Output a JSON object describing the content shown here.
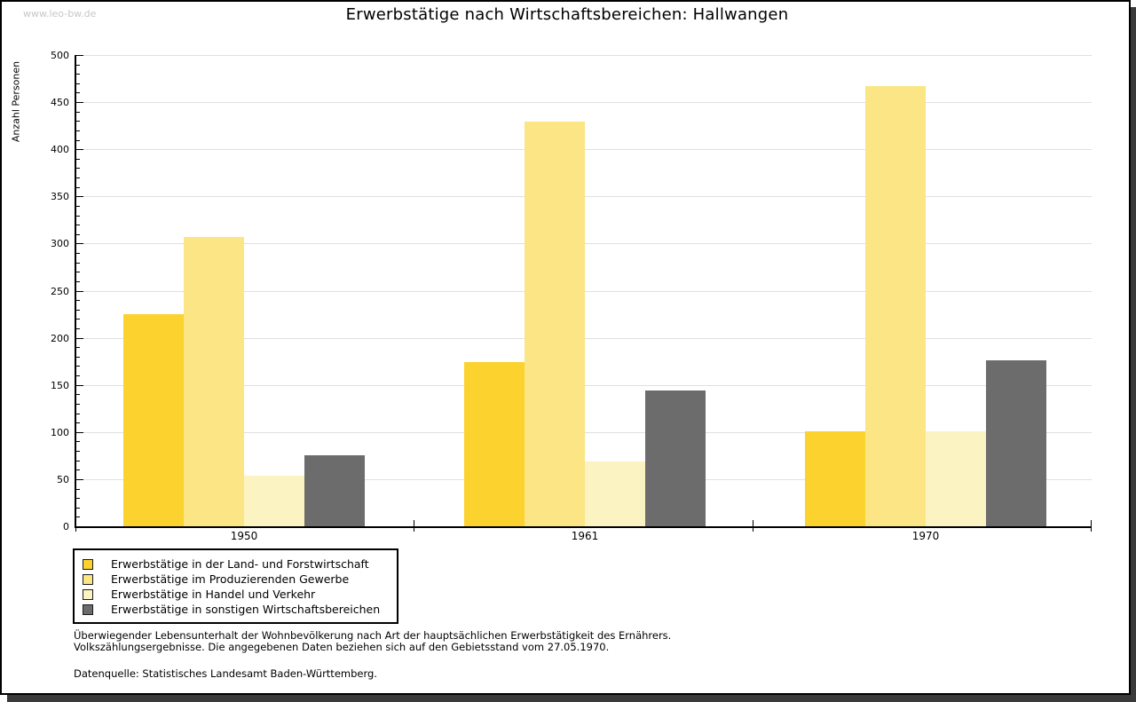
{
  "watermark": "www.leo-bw.de",
  "title": "Erwerbstätige nach Wirtschaftsbereichen: Hallwangen",
  "chart_data": {
    "type": "bar",
    "title": "Erwerbstätige nach Wirtschaftsbereichen: Hallwangen",
    "xlabel": "",
    "ylabel": "Anzahl Personen",
    "ylim": [
      0,
      500
    ],
    "ytick_step": 50,
    "ytick_minor_step": 10,
    "grid": true,
    "legend_position": "bottom-left",
    "categories": [
      "1950",
      "1961",
      "1970"
    ],
    "series": [
      {
        "name": "Erwerbstätige in der Land- und Forstwirtschaft",
        "color": "#fcd22f",
        "values": [
          225,
          174,
          101
        ]
      },
      {
        "name": "Erwerbstätige im Produzierenden Gewerbe",
        "color": "#fbe584",
        "values": [
          307,
          429,
          467
        ]
      },
      {
        "name": "Erwerbstätige in Handel und Verkehr",
        "color": "#fcf3c3",
        "values": [
          54,
          69,
          101
        ]
      },
      {
        "name": "Erwerbstätige in sonstigen Wirtschaftsbereichen",
        "color": "#6c6c6c",
        "values": [
          75,
          144,
          176
        ]
      }
    ]
  },
  "footnotes": {
    "line1": "Überwiegender Lebensunterhalt der Wohnbevölkerung nach Art der hauptsächlichen Erwerbstätigkeit des Ernährers.",
    "line2": "Volkszählungsergebnisse. Die angegebenen Daten beziehen sich auf den Gebietsstand vom 27.05.1970.",
    "source": "Datenquelle: Statistisches Landesamt Baden-Württemberg."
  },
  "colors": {
    "grid": "#e0e0e0",
    "axis": "#000000",
    "watermark": "#c8c8c8",
    "frame_shadow": "#3a3a3a",
    "background": "#ffffff"
  }
}
